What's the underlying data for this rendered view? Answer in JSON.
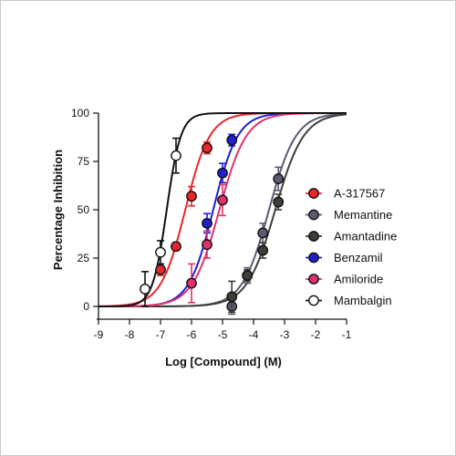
{
  "chart_data": {
    "type": "scatter",
    "title": "",
    "xlabel": "Log [Compound] (M)",
    "ylabel": "Percentage Inhibition",
    "xlim": [
      -9,
      -1
    ],
    "ylim": [
      0,
      100
    ],
    "x_ticks": [
      "-9",
      "-8",
      "-7",
      "-6",
      "-5",
      "-4",
      "-3",
      "-2",
      "-1"
    ],
    "y_ticks": [
      "0",
      "25",
      "50",
      "75",
      "100"
    ],
    "grid": false,
    "legend_position": "right",
    "fit": "sigmoidal dose-response",
    "series": [
      {
        "name": "A-317567",
        "color": "#e8262b",
        "marker": "filled-circle",
        "logIC50": -6.2,
        "hill": 1.1,
        "points": [
          {
            "x": -7.0,
            "y": 19,
            "err": 3
          },
          {
            "x": -6.5,
            "y": 31,
            "err": 2
          },
          {
            "x": -6.0,
            "y": 57,
            "err": 5
          },
          {
            "x": -5.5,
            "y": 82,
            "err": 3
          }
        ]
      },
      {
        "name": "Memantine",
        "color": "#5b5a72",
        "marker": "filled-circle",
        "logIC50": -3.5,
        "hill": 1.0,
        "points": [
          {
            "x": -4.7,
            "y": 0,
            "err": 4
          },
          {
            "x": -4.2,
            "y": 16,
            "err": 4
          },
          {
            "x": -3.7,
            "y": 38,
            "err": 5
          },
          {
            "x": -3.2,
            "y": 66,
            "err": 6
          }
        ]
      },
      {
        "name": "Amantadine",
        "color": "#3b3f38",
        "marker": "filled-circle",
        "logIC50": -3.3,
        "hill": 0.95,
        "points": [
          {
            "x": -4.7,
            "y": 5,
            "err": 8
          },
          {
            "x": -4.2,
            "y": 16,
            "err": 3
          },
          {
            "x": -3.7,
            "y": 29,
            "err": 4
          },
          {
            "x": -3.2,
            "y": 54,
            "err": 4
          }
        ]
      },
      {
        "name": "Benzamil",
        "color": "#1f1fd0",
        "marker": "filled-circle",
        "logIC50": -5.3,
        "hill": 1.1,
        "points": [
          {
            "x": -5.5,
            "y": 43,
            "err": 5
          },
          {
            "x": -5.0,
            "y": 69,
            "err": 5
          },
          {
            "x": -4.7,
            "y": 86,
            "err": 3
          }
        ]
      },
      {
        "name": "Amiloride",
        "color": "#e0316a",
        "marker": "filled-circle",
        "logIC50": -5.1,
        "hill": 1.0,
        "points": [
          {
            "x": -6.0,
            "y": 12,
            "err": 10
          },
          {
            "x": -5.5,
            "y": 32,
            "err": 7
          },
          {
            "x": -5.0,
            "y": 55,
            "err": 8
          }
        ]
      },
      {
        "name": "Mambalgin",
        "color": "#111111",
        "marker": "open-circle",
        "logIC50": -6.8,
        "hill": 1.9,
        "points": [
          {
            "x": -7.5,
            "y": 9,
            "err": 9
          },
          {
            "x": -7.0,
            "y": 28,
            "err": 6
          },
          {
            "x": -6.5,
            "y": 78,
            "err": 9
          }
        ]
      }
    ]
  }
}
